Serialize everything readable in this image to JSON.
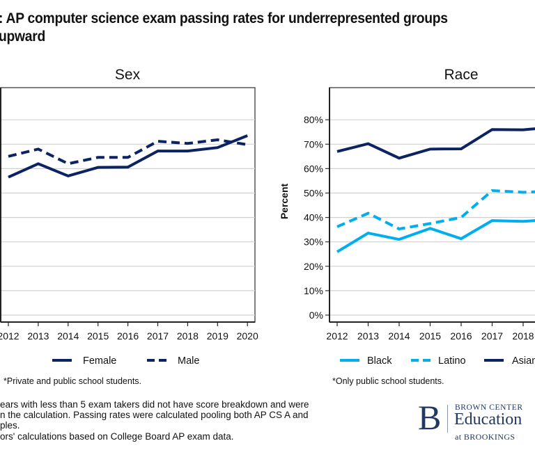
{
  "title_line1": ": AP computer science exam passing rates for underrepresented groups",
  "title_line2": " upward",
  "colors": {
    "navy": "#0b2360",
    "light_blue": "#00aeef",
    "grid": "#d0d0d0",
    "axis": "#333333",
    "brand": "#1f3864"
  },
  "chart_data": [
    {
      "type": "line",
      "title": "Sex",
      "xlabel": "",
      "ylabel": "",
      "x": [
        "2012",
        "2013",
        "2014",
        "2015",
        "2016",
        "2017",
        "2018",
        "2019",
        "2020"
      ],
      "ylim": [
        0,
        90
      ],
      "yticks": [
        0,
        10,
        20,
        30,
        40,
        50,
        60,
        70,
        80
      ],
      "grid": true,
      "series": [
        {
          "name": "Female",
          "style": "solid",
          "color": "#0b2360",
          "values": [
            56.5,
            62.0,
            57.0,
            60.5,
            60.6,
            67.2,
            67.2,
            68.6,
            73.5
          ]
        },
        {
          "name": "Male",
          "style": "dashed",
          "color": "#0b2360",
          "values": [
            65.0,
            68.0,
            62.0,
            64.6,
            64.6,
            71.2,
            70.3,
            71.8,
            69.8
          ]
        }
      ],
      "legend": [
        "Female",
        "Male"
      ],
      "legend_position": "bottom",
      "note": "*Private and public school students."
    },
    {
      "type": "line",
      "title": "Race",
      "xlabel": "",
      "ylabel": "Percent",
      "x": [
        "2012",
        "2013",
        "2014",
        "2015",
        "2016",
        "2017",
        "2018"
      ],
      "ylim": [
        0,
        90
      ],
      "yticks": [
        0,
        10,
        20,
        30,
        40,
        50,
        60,
        70,
        80
      ],
      "ytick_labels": [
        "0%",
        "10%",
        "20%",
        "30%",
        "40%",
        "50%",
        "60%",
        "70%",
        "80%"
      ],
      "grid": true,
      "series": [
        {
          "name": "Black",
          "style": "solid",
          "color": "#00aeef",
          "values": [
            25.9,
            33.6,
            31.0,
            35.5,
            31.3,
            38.7,
            38.4
          ]
        },
        {
          "name": "Latino",
          "style": "dashed",
          "color": "#00aeef",
          "values": [
            36.2,
            41.7,
            35.3,
            37.5,
            40.0,
            51.0,
            50.3
          ]
        },
        {
          "name": "Asian",
          "style": "solid",
          "color": "#0b2360",
          "values": [
            67.0,
            70.2,
            64.3,
            68.0,
            68.1,
            76.0,
            75.9
          ]
        }
      ],
      "legend": [
        "Black",
        "Latino",
        "Asian"
      ],
      "legend_position": "bottom",
      "note": "*Only public school students."
    }
  ],
  "footnotes": [
    "ears with less than 5 exam takers did not have score breakdown and were",
    "n the calculation. Passing rates were calculated pooling both AP CS A and",
    "ples.",
    "ors' calculations based on College Board AP exam data."
  ],
  "logo": {
    "letter": "B",
    "line1": "BROWN CENTER",
    "line2": "Education",
    "line3": "at BROOKINGS"
  }
}
